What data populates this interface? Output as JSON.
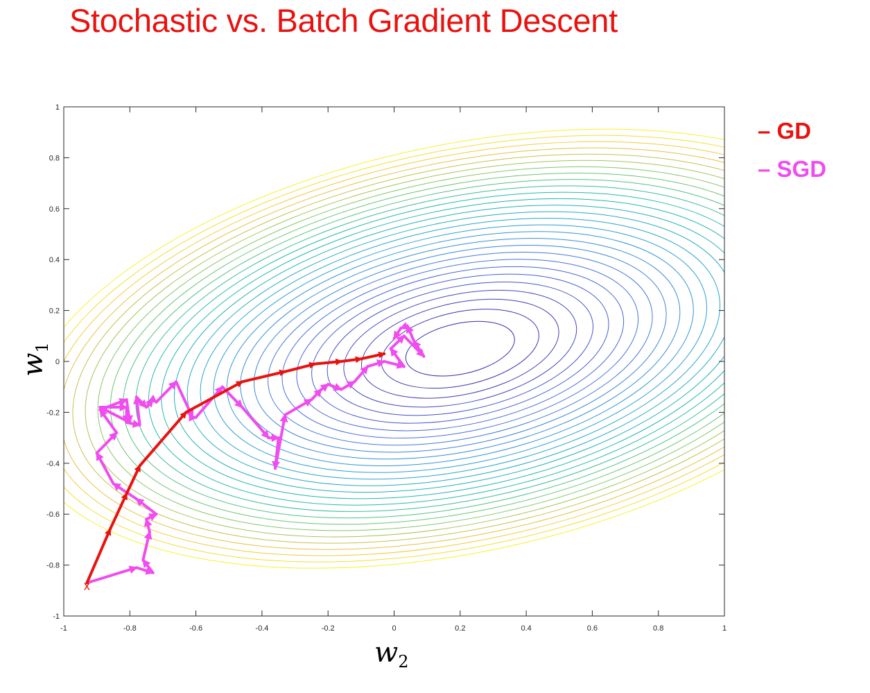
{
  "title": "Stochastic vs. Batch Gradient Descent",
  "legend": [
    {
      "dash": "–",
      "label": "GD",
      "color": "#e8120f"
    },
    {
      "dash": "–",
      "label": "SGD",
      "color": "#f04cf0"
    }
  ],
  "chart_data": {
    "type": "line",
    "subtype": "contour with optimization paths",
    "title": "Stochastic vs. Batch Gradient Descent",
    "xlabel": "w",
    "xlabel_subscript": "2",
    "ylabel": "w",
    "ylabel_subscript": "1",
    "xlim": [
      -1,
      1
    ],
    "ylim": [
      -1,
      1
    ],
    "xticks": [
      -1,
      -0.8,
      -0.6,
      -0.4,
      -0.2,
      0,
      0.2,
      0.4,
      0.6,
      0.8,
      1
    ],
    "yticks": [
      -1,
      -0.8,
      -0.6,
      -0.4,
      -0.2,
      0,
      0.2,
      0.4,
      0.6,
      0.8,
      1
    ],
    "grid": false,
    "legend_position": "right",
    "contour_center": [
      0.2,
      0.05
    ],
    "contour_levels": 28,
    "start_marker": {
      "x": -0.93,
      "y": -0.87,
      "symbol": "x",
      "color": "#e8120f"
    },
    "series": [
      {
        "name": "GD",
        "color": "#e8120f",
        "x": [
          -0.93,
          -0.86,
          -0.81,
          -0.77,
          -0.63,
          -0.46,
          -0.33,
          -0.24,
          -0.16,
          -0.1,
          -0.03
        ],
        "y": [
          -0.87,
          -0.66,
          -0.52,
          -0.41,
          -0.2,
          -0.08,
          -0.04,
          -0.01,
          0.0,
          0.01,
          0.03
        ]
      },
      {
        "name": "SGD",
        "color": "#f04cf0",
        "x": [
          -0.93,
          -0.78,
          -0.73,
          -0.76,
          -0.74,
          -0.75,
          -0.72,
          -0.78,
          -0.85,
          -0.9,
          -0.84,
          -0.89,
          -0.81,
          -0.8,
          -0.89,
          -0.81,
          -0.81,
          -0.77,
          -0.78,
          -0.75,
          -0.73,
          -0.72,
          -0.66,
          -0.61,
          -0.6,
          -0.52,
          -0.46,
          -0.38,
          -0.35,
          -0.36,
          -0.33,
          -0.25,
          -0.22,
          -0.2,
          -0.16,
          -0.12,
          -0.08,
          -0.03,
          0.03,
          -0.01,
          0.03,
          0.09,
          0.06,
          0.04,
          0.02,
          0.0
        ],
        "y": [
          -0.87,
          -0.81,
          -0.83,
          -0.78,
          -0.67,
          -0.62,
          -0.6,
          -0.54,
          -0.48,
          -0.36,
          -0.28,
          -0.19,
          -0.15,
          -0.24,
          -0.18,
          -0.18,
          -0.24,
          -0.25,
          -0.14,
          -0.18,
          -0.15,
          -0.16,
          -0.08,
          -0.22,
          -0.22,
          -0.1,
          -0.18,
          -0.3,
          -0.3,
          -0.42,
          -0.21,
          -0.15,
          -0.11,
          -0.09,
          -0.11,
          -0.08,
          -0.02,
          0.0,
          -0.02,
          0.05,
          0.1,
          0.02,
          0.08,
          0.14,
          0.13,
          0.09
        ]
      }
    ]
  }
}
